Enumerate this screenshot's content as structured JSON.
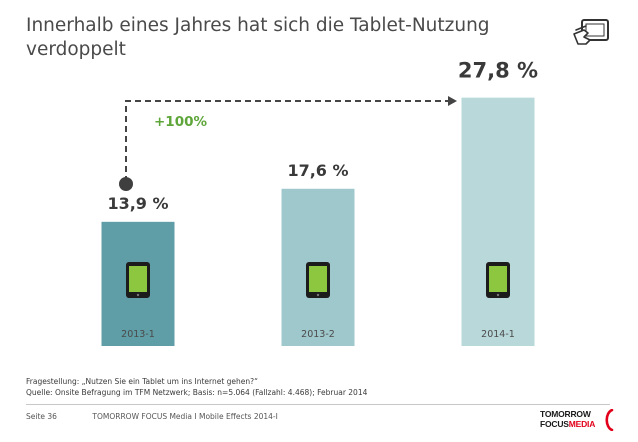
{
  "title": {
    "line1": "Innerhalb eines Jahres hat sich die Tablet-Nutzung",
    "line2": "verdoppelt"
  },
  "header_icon": "tablet-touch-icon",
  "chart_data": {
    "type": "bar",
    "title": "Innerhalb eines Jahres hat sich die Tablet-Nutzung verdoppelt",
    "categories": [
      "2013-1",
      "2013-2",
      "2014-1"
    ],
    "values": [
      13.9,
      17.6,
      27.8
    ],
    "value_labels": [
      "13,9 %",
      "17,6 %",
      "27,8 %"
    ],
    "unit": "%",
    "ylim": [
      0,
      30
    ],
    "grid": false,
    "legend": "none",
    "bar_colors": [
      "#5f9ea6",
      "#9fc8cc",
      "#b9d8da"
    ],
    "annotation": {
      "label": "+100%",
      "from": "2013-1",
      "to": "2014-1",
      "color": "#5fa63a"
    },
    "bar_icon": "tablet-icon"
  },
  "footnote": {
    "question": "Fragestellung: „Nutzen Sie ein Tablet um ins Internet gehen?“",
    "source": "Quelle: Onsite Befragung im TFM Netzwerk; Basis: n=5.064 (Fallzahl: 4.468); Februar 2014"
  },
  "footer": {
    "page": "Seite 36",
    "text": "TOMORROW FOCUS Media  I  Mobile Effects 2014-I"
  },
  "logo": {
    "line1": "TOMORROW",
    "line2_a": "FOCUS",
    "line2_b": "MEDIA"
  },
  "colors": {
    "label_text": "#3a3a3a",
    "category_text": "#4a4a4a",
    "dashed_line": "#444444",
    "tablet_body": "#1c1c1c",
    "tablet_screen": "#8dc63f"
  }
}
